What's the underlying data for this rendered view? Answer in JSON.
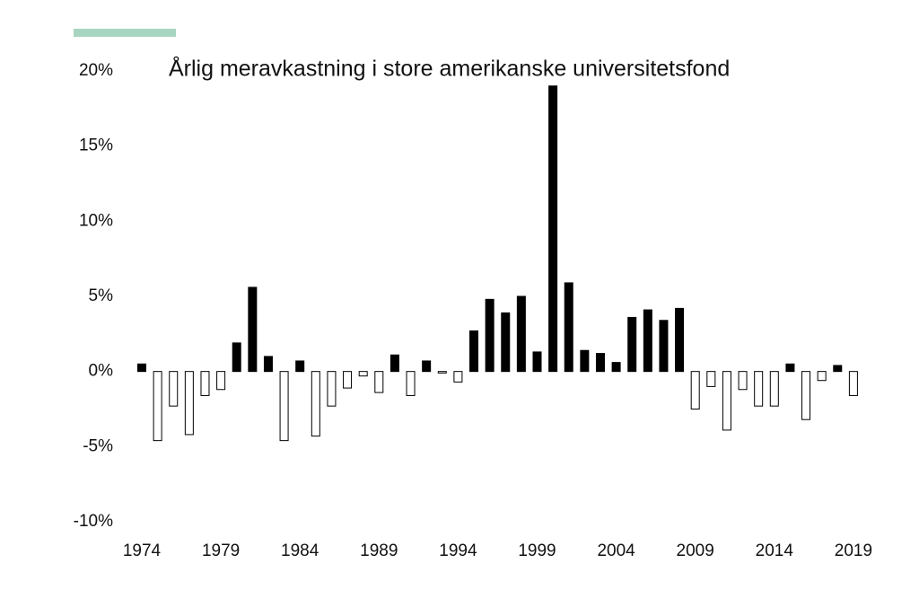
{
  "chart_data": {
    "type": "bar",
    "title": "Årlig meravkastning i store amerikanske universitetsfond",
    "categories": [
      "1974",
      null,
      null,
      null,
      null,
      "1979",
      null,
      null,
      null,
      null,
      "1984",
      null,
      null,
      null,
      null,
      "1989",
      null,
      null,
      null,
      null,
      "1994",
      null,
      null,
      null,
      null,
      "1999",
      null,
      null,
      null,
      null,
      "2004",
      null,
      null,
      null,
      null,
      "2009",
      null,
      null,
      null,
      null,
      "2014",
      null,
      null,
      null,
      null,
      "2019"
    ],
    "values": [
      0.5,
      -4.6,
      -2.3,
      -4.2,
      -1.6,
      -1.2,
      1.9,
      5.6,
      1.0,
      -4.6,
      0.7,
      -4.3,
      -2.3,
      -1.1,
      -0.3,
      -1.4,
      1.1,
      -1.6,
      0.7,
      -0.1,
      -0.7,
      2.7,
      4.8,
      3.9,
      5.0,
      1.3,
      19.0,
      5.9,
      1.4,
      1.2,
      0.6,
      3.6,
      4.1,
      3.4,
      4.2,
      -2.5,
      -1.0,
      -3.9,
      -1.2,
      -2.3,
      -2.3,
      0.5,
      -3.2,
      -0.6,
      0.4,
      -1.6
    ],
    "positive_color": "#000000",
    "negative_color": "#ffffff",
    "ylim": [
      -10,
      20
    ],
    "yticks": [
      {
        "value": -10,
        "label": "-10%"
      },
      {
        "value": -5,
        "label": "-5%"
      },
      {
        "value": 0,
        "label": "0%"
      },
      {
        "value": 5,
        "label": "5%"
      },
      {
        "value": 10,
        "label": "10%"
      },
      {
        "value": 15,
        "label": "15%"
      },
      {
        "value": 20,
        "label": "20%"
      }
    ],
    "grid": false
  }
}
